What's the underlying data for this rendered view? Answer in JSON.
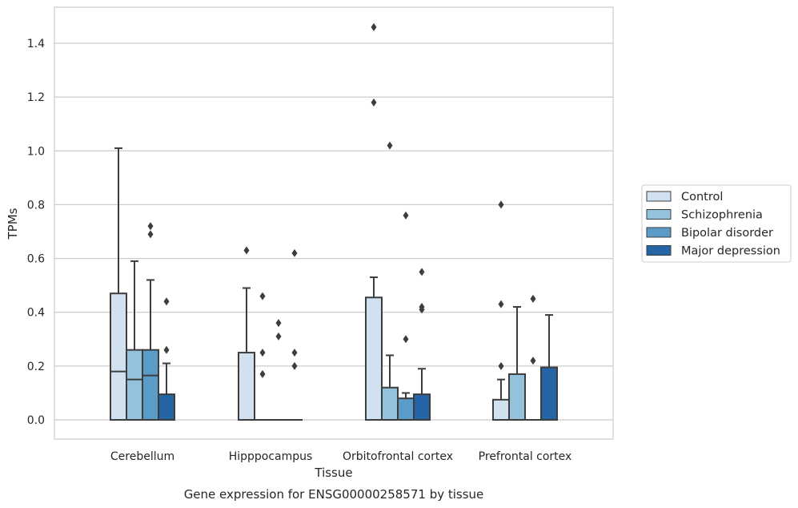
{
  "chart_data": {
    "type": "box",
    "title": "",
    "caption": "Gene expression for ENSG00000258571 by tissue",
    "xlabel": "Tissue",
    "ylabel": "TPMs",
    "ylim": [
      -0.07,
      1.53
    ],
    "yticks": [
      0.0,
      0.2,
      0.4,
      0.6,
      0.8,
      1.0,
      1.2,
      1.4
    ],
    "ytick_labels": [
      "0.0",
      "0.2",
      "0.4",
      "0.6",
      "0.8",
      "1.0",
      "1.2",
      "1.4"
    ],
    "grid": "horizontal",
    "legend_position": "right",
    "categories": [
      "Cerebellum",
      "Hipppocampus",
      "Orbitofrontal cortex",
      "Prefrontal cortex"
    ],
    "series": [
      {
        "name": "Control",
        "color": "#d1e1ef",
        "boxes": [
          {
            "q1": 0.0,
            "median": 0.18,
            "q3": 0.47,
            "whisker_low": 0.0,
            "whisker_high": 1.01,
            "outliers": []
          },
          {
            "q1": 0.0,
            "median": 0.0,
            "q3": 0.25,
            "whisker_low": 0.0,
            "whisker_high": 0.49,
            "outliers": [
              0.63
            ]
          },
          {
            "q1": 0.0,
            "median": 0.0,
            "q3": 0.455,
            "whisker_low": 0.0,
            "whisker_high": 0.53,
            "outliers": [
              1.46,
              1.18
            ]
          },
          {
            "q1": 0.0,
            "median": 0.0,
            "q3": 0.075,
            "whisker_low": 0.0,
            "whisker_high": 0.15,
            "outliers": [
              0.8,
              0.43,
              0.2
            ]
          }
        ]
      },
      {
        "name": "Schizophrenia",
        "color": "#94c1dc",
        "boxes": [
          {
            "q1": 0.0,
            "median": 0.15,
            "q3": 0.26,
            "whisker_low": 0.0,
            "whisker_high": 0.59,
            "outliers": []
          },
          {
            "q1": 0.0,
            "median": 0.0,
            "q3": 0.0,
            "whisker_low": 0.0,
            "whisker_high": 0.0,
            "outliers": [
              0.46,
              0.25,
              0.17
            ]
          },
          {
            "q1": 0.0,
            "median": 0.0,
            "q3": 0.12,
            "whisker_low": 0.0,
            "whisker_high": 0.24,
            "outliers": [
              1.02
            ]
          },
          {
            "q1": 0.0,
            "median": 0.0,
            "q3": 0.17,
            "whisker_low": 0.0,
            "whisker_high": 0.42,
            "outliers": []
          }
        ]
      },
      {
        "name": "Bipolar disorder",
        "color": "#5a9bc8",
        "boxes": [
          {
            "q1": 0.0,
            "median": 0.165,
            "q3": 0.26,
            "whisker_low": 0.0,
            "whisker_high": 0.52,
            "outliers": [
              0.72,
              0.69
            ]
          },
          {
            "q1": 0.0,
            "median": 0.0,
            "q3": 0.0,
            "whisker_low": 0.0,
            "whisker_high": 0.0,
            "outliers": [
              0.36,
              0.31
            ]
          },
          {
            "q1": 0.0,
            "median": 0.0,
            "q3": 0.08,
            "whisker_low": 0.0,
            "whisker_high": 0.1,
            "outliers": [
              0.76,
              0.3
            ]
          },
          {
            "q1": 0.0,
            "median": 0.0,
            "q3": 0.0,
            "whisker_low": 0.0,
            "whisker_high": 0.0,
            "outliers": [
              0.45,
              0.22
            ]
          }
        ]
      },
      {
        "name": "Major depression",
        "color": "#2565a5",
        "boxes": [
          {
            "q1": 0.0,
            "median": 0.0,
            "q3": 0.095,
            "whisker_low": 0.0,
            "whisker_high": 0.21,
            "outliers": [
              0.44,
              0.26
            ]
          },
          {
            "q1": 0.0,
            "median": 0.0,
            "q3": 0.0,
            "whisker_low": 0.0,
            "whisker_high": 0.0,
            "outliers": [
              0.62,
              0.25,
              0.2
            ]
          },
          {
            "q1": 0.0,
            "median": 0.0,
            "q3": 0.095,
            "whisker_low": 0.0,
            "whisker_high": 0.19,
            "outliers": [
              0.55,
              0.42,
              0.41
            ]
          },
          {
            "q1": 0.0,
            "median": 0.0,
            "q3": 0.195,
            "whisker_low": 0.0,
            "whisker_high": 0.39,
            "outliers": []
          }
        ]
      }
    ]
  }
}
